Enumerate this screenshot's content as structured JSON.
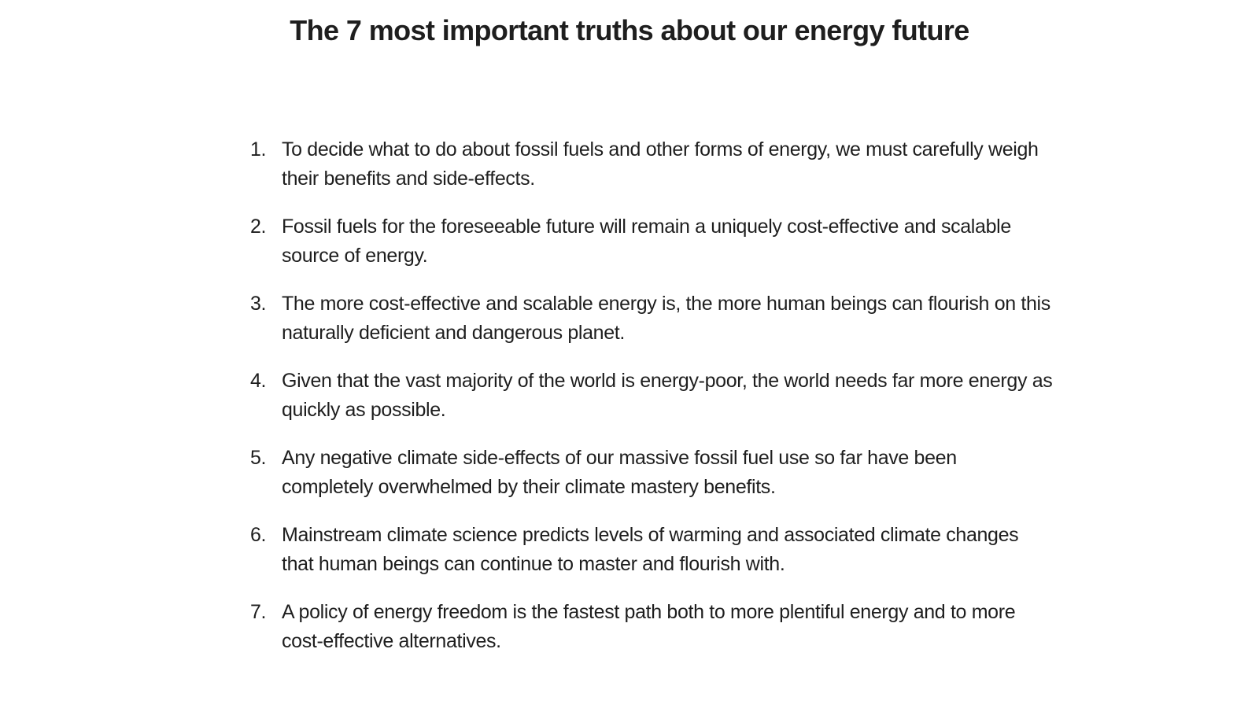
{
  "title": "The 7 most important truths about our energy future",
  "truths": [
    {
      "number": "1.",
      "text": "To decide what to do about fossil fuels and other forms of energy, we must carefully weigh their benefits and side-effects."
    },
    {
      "number": "2.",
      "text": "Fossil fuels for the foreseeable future will remain a uniquely cost-effective and scalable source of energy."
    },
    {
      "number": "3.",
      "text": "The more cost-effective and scalable energy is, the more human beings can flourish on this naturally deficient and dangerous planet."
    },
    {
      "number": "4.",
      "text": "Given that the vast majority of the world is energy-poor, the world needs far more energy as quickly as possible."
    },
    {
      "number": "5.",
      "text": "Any negative climate side-effects of our massive fossil fuel use so far have been completely overwhelmed by their climate mastery benefits."
    },
    {
      "number": "6.",
      "text": "Mainstream climate science predicts levels of warming and associated climate changes that human beings can continue to master and flourish with."
    },
    {
      "number": "7.",
      "text": "A policy of energy freedom is the fastest path both to more plentiful energy and to more cost-effective alternatives."
    }
  ]
}
